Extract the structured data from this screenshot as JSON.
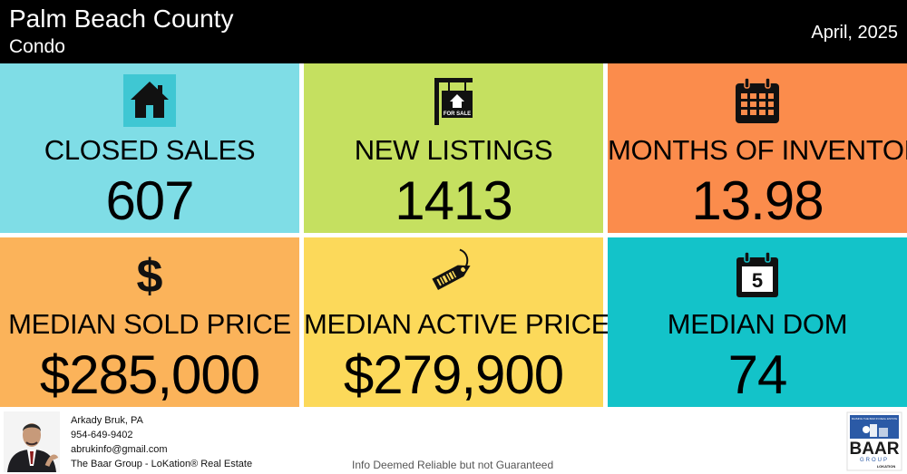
{
  "header": {
    "title": "Palm Beach County",
    "subtitle": "Condo",
    "date": "April, 2025"
  },
  "tiles": [
    {
      "label": "CLOSED SALES",
      "value": "607",
      "icon": "house-icon",
      "color": "#7fdde6"
    },
    {
      "label": "NEW LISTINGS",
      "value": "1413",
      "icon": "for-sale-sign-icon",
      "icon_text": "FOR SALE",
      "color": "#c5e060"
    },
    {
      "label": "MONTHS OF INVENTORY",
      "value": "13.98",
      "icon": "calendar-grid-icon",
      "color": "#fb8c4c"
    },
    {
      "label": "MEDIAN SOLD PRICE",
      "value": "$285,000",
      "icon": "dollar-icon",
      "icon_text": "$",
      "color": "#fbb35a"
    },
    {
      "label": "MEDIAN ACTIVE PRICE",
      "value": "$279,900",
      "icon": "price-tag-icon",
      "color": "#fcd95a"
    },
    {
      "label": "MEDIAN DOM",
      "value": "74",
      "icon": "calendar-day-icon",
      "icon_text": "5",
      "color": "#13c3c9"
    }
  ],
  "footer": {
    "agent_name": "Arkady Bruk, PA",
    "phone": "954-649-9402",
    "email": "abrukinfo@gmail.com",
    "company": "The Baar Group - LoKation® Real Estate",
    "disclaimer": "Info Deemed Reliable but not Guaranteed",
    "logo": {
      "tagline": "RAISING THE BAR IN REAL ESTATE",
      "name": "BAAR",
      "sub": "GROUP",
      "brand": "LOKATION",
      "colors": {
        "blue": "#2b5aa6",
        "dark": "#1a1a1a"
      }
    }
  }
}
